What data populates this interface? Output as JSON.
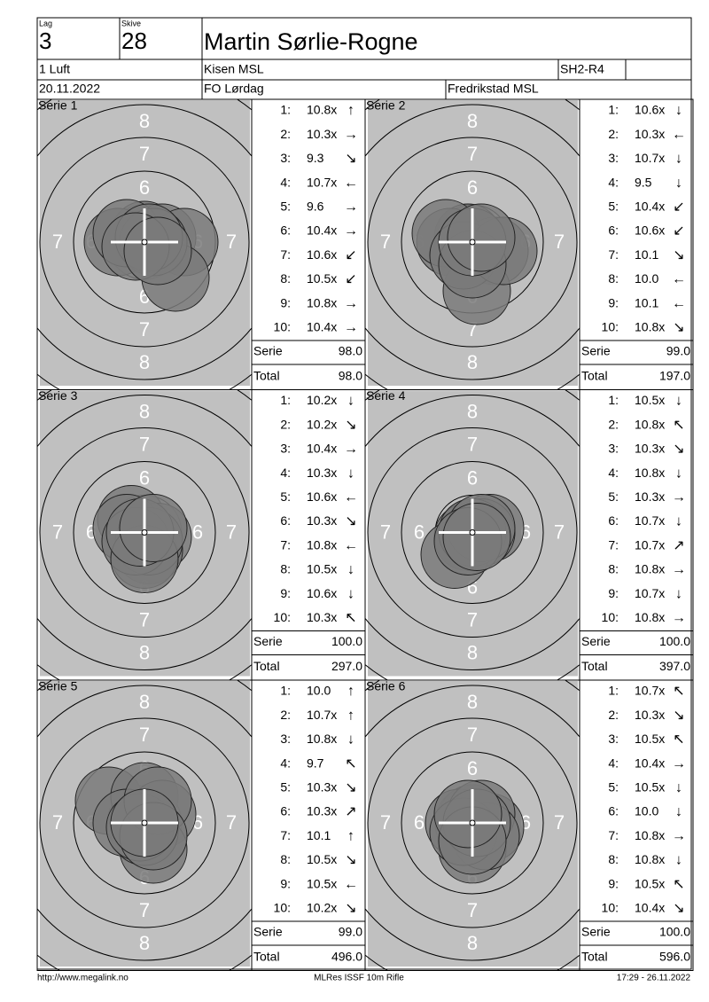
{
  "header": {
    "lag_label": "Lag",
    "lag": "3",
    "skive_label": "Skive",
    "skive": "28",
    "name": "Martin Sørlie-Rogne",
    "class": "1 Luft",
    "club": "Kisen MSL",
    "code": "SH2-R4",
    "date": "20.11.2022",
    "event": "FO Lørdag",
    "location": "Fredrikstad MSL"
  },
  "labels": {
    "serie": "Serie",
    "total": "Total"
  },
  "shot_numbers": [
    "1:",
    "2:",
    "3:",
    "4:",
    "5:",
    "6:",
    "7:",
    "8:",
    "9:",
    "10:"
  ],
  "ring_labels": [
    "6",
    "7",
    "8"
  ],
  "series": [
    {
      "title": "Serie 1",
      "scores": [
        "10.8x",
        "10.3x",
        "9.3",
        "10.7x",
        "9.6",
        "10.4x",
        "10.6x",
        "10.5x",
        "10.8x",
        "10.4x"
      ],
      "arrows": [
        "↑",
        "→",
        "↘",
        "←",
        "→",
        "→",
        "↙",
        "↙",
        "→",
        "→"
      ],
      "serie": "98.0",
      "total": "98.0"
    },
    {
      "title": "Serie 2",
      "scores": [
        "10.6x",
        "10.3x",
        "10.7x",
        "9.5",
        "10.4x",
        "10.6x",
        "10.1",
        "10.0",
        "10.1",
        "10.8x"
      ],
      "arrows": [
        "↓",
        "←",
        "↓",
        "↓",
        "↙",
        "↙",
        "↘",
        "←",
        "←",
        "↘"
      ],
      "serie": "99.0",
      "total": "197.0"
    },
    {
      "title": "Serie 3",
      "scores": [
        "10.2x",
        "10.2x",
        "10.4x",
        "10.3x",
        "10.6x",
        "10.3x",
        "10.8x",
        "10.5x",
        "10.6x",
        "10.3x"
      ],
      "arrows": [
        "↓",
        "↘",
        "→",
        "↓",
        "←",
        "↘",
        "←",
        "↓",
        "↓",
        "↖"
      ],
      "serie": "100.0",
      "total": "297.0"
    },
    {
      "title": "Serie 4",
      "scores": [
        "10.5x",
        "10.8x",
        "10.3x",
        "10.8x",
        "10.3x",
        "10.7x",
        "10.7x",
        "10.8x",
        "10.7x",
        "10.8x"
      ],
      "arrows": [
        "↓",
        "↖",
        "↘",
        "↓",
        "→",
        "↓",
        "↗",
        "→",
        "↓",
        "→"
      ],
      "serie": "100.0",
      "total": "397.0"
    },
    {
      "title": "Serie 5",
      "scores": [
        "10.0",
        "10.7x",
        "10.8x",
        "9.7",
        "10.3x",
        "10.3x",
        "10.1",
        "10.5x",
        "10.5x",
        "10.2x"
      ],
      "arrows": [
        "↑",
        "↑",
        "↓",
        "↖",
        "↘",
        "↗",
        "↑",
        "↘",
        "←",
        "↘"
      ],
      "serie": "99.0",
      "total": "496.0"
    },
    {
      "title": "Serie 6",
      "scores": [
        "10.7x",
        "10.3x",
        "10.5x",
        "10.4x",
        "10.5x",
        "10.0",
        "10.8x",
        "10.8x",
        "10.5x",
        "10.4x"
      ],
      "arrows": [
        "↖",
        "↘",
        "↖",
        "→",
        "↓",
        "↓",
        "→",
        "↓",
        "↖",
        "↘"
      ],
      "serie": "100.0",
      "total": "596.0"
    }
  ],
  "footer": {
    "url": "http://www.megalink.no",
    "software": "MLRes ISSF 10m Rifle",
    "timestamp": "17:29 - 26.11.2022"
  }
}
